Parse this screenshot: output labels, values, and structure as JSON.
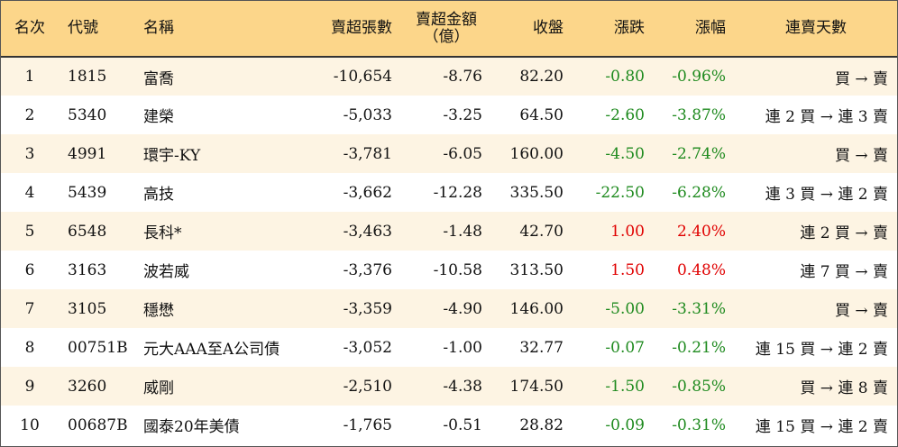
{
  "colors": {
    "header_bg": "#fcd68a",
    "odd_row_bg": "#fdf4e3",
    "even_row_bg": "#ffffff",
    "down": "#1e8a1e",
    "up": "#e00000"
  },
  "headers": {
    "rank": "名次",
    "code": "代號",
    "name": "名稱",
    "net_sell_shares": "賣超張數",
    "net_sell_amount_line1": "賣超金額",
    "net_sell_amount_line2": "（億）",
    "close": "收盤",
    "change": "漲跌",
    "change_pct": "漲幅",
    "streak": "連賣天數"
  },
  "rows": [
    {
      "rank": "1",
      "code": "1815",
      "name": "富喬",
      "shares": "-10,654",
      "amount": "-8.76",
      "close": "82.20",
      "change": "-0.80",
      "change_pct": "-0.96%",
      "dir": "down",
      "streak": "買 → 賣"
    },
    {
      "rank": "2",
      "code": "5340",
      "name": "建榮",
      "shares": "-5,033",
      "amount": "-3.25",
      "close": "64.50",
      "change": "-2.60",
      "change_pct": "-3.87%",
      "dir": "down",
      "streak": "連 2 買 → 連 3 賣"
    },
    {
      "rank": "3",
      "code": "4991",
      "name": "環宇-KY",
      "shares": "-3,781",
      "amount": "-6.05",
      "close": "160.00",
      "change": "-4.50",
      "change_pct": "-2.74%",
      "dir": "down",
      "streak": "買 → 賣"
    },
    {
      "rank": "4",
      "code": "5439",
      "name": "高技",
      "shares": "-3,662",
      "amount": "-12.28",
      "close": "335.50",
      "change": "-22.50",
      "change_pct": "-6.28%",
      "dir": "down",
      "streak": "連 3 買 → 連 2 賣"
    },
    {
      "rank": "5",
      "code": "6548",
      "name": "長科*",
      "shares": "-3,463",
      "amount": "-1.48",
      "close": "42.70",
      "change": "1.00",
      "change_pct": "2.40%",
      "dir": "up",
      "streak": "連 2 買 → 賣"
    },
    {
      "rank": "6",
      "code": "3163",
      "name": "波若威",
      "shares": "-3,376",
      "amount": "-10.58",
      "close": "313.50",
      "change": "1.50",
      "change_pct": "0.48%",
      "dir": "up",
      "streak": "連 7 買 → 賣"
    },
    {
      "rank": "7",
      "code": "3105",
      "name": "穩懋",
      "shares": "-3,359",
      "amount": "-4.90",
      "close": "146.00",
      "change": "-5.00",
      "change_pct": "-3.31%",
      "dir": "down",
      "streak": "買 → 賣"
    },
    {
      "rank": "8",
      "code": "00751B",
      "name": "元大AAA至A公司債",
      "shares": "-3,052",
      "amount": "-1.00",
      "close": "32.77",
      "change": "-0.07",
      "change_pct": "-0.21%",
      "dir": "down",
      "streak": "連 15 買 → 連 2 賣"
    },
    {
      "rank": "9",
      "code": "3260",
      "name": "威剛",
      "shares": "-2,510",
      "amount": "-4.38",
      "close": "174.50",
      "change": "-1.50",
      "change_pct": "-0.85%",
      "dir": "down",
      "streak": "買 → 連 8 賣"
    },
    {
      "rank": "10",
      "code": "00687B",
      "name": "國泰20年美債",
      "shares": "-1,765",
      "amount": "-0.51",
      "close": "28.82",
      "change": "-0.09",
      "change_pct": "-0.31%",
      "dir": "down",
      "streak": "連 15 買 → 連 2 賣"
    }
  ]
}
